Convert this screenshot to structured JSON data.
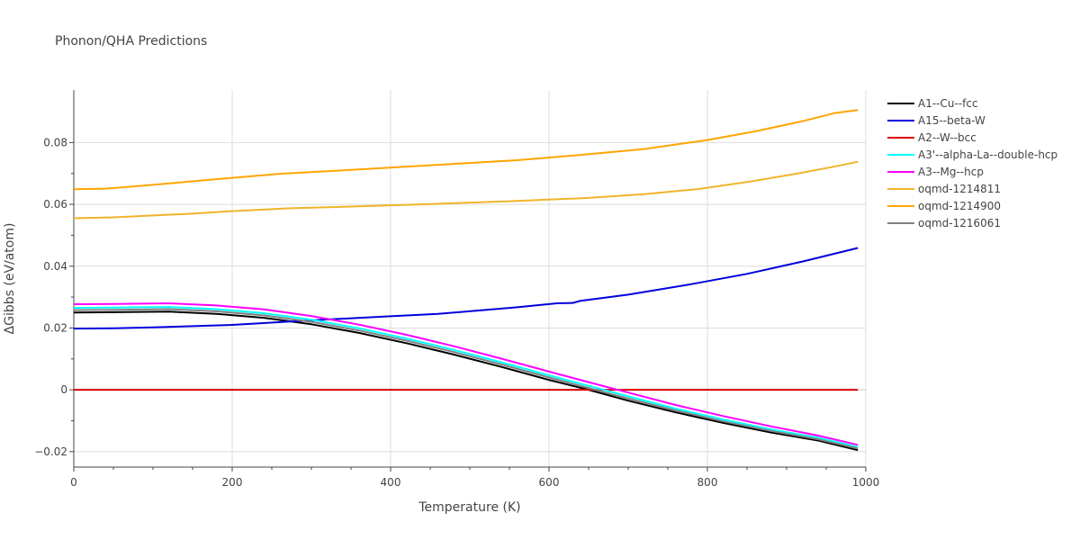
{
  "chart_data": {
    "type": "line",
    "title": "Phonon/QHA Predictions",
    "xlabel": "Temperature (K)",
    "ylabel": "ΔGibbs (eV/atom)",
    "xlim": [
      0,
      1000
    ],
    "ylim": [
      -0.025,
      0.097
    ],
    "x_ticks": [
      0,
      200,
      400,
      600,
      800,
      1000
    ],
    "x_tick_labels": [
      "0",
      "200",
      "400",
      "600",
      "800",
      "1000"
    ],
    "y_ticks": [
      -0.02,
      0,
      0.02,
      0.04,
      0.06,
      0.08
    ],
    "y_tick_labels": [
      "−0.02",
      "0",
      "0.02",
      "0.04",
      "0.06",
      "0.08"
    ],
    "grid": true,
    "legend_position": "top-right outside",
    "series": [
      {
        "name": "A1--Cu--fcc",
        "color": "#000000",
        "x": [
          0,
          50,
          120,
          180,
          240,
          300,
          360,
          420,
          480,
          540,
          600,
          650,
          700,
          760,
          820,
          880,
          940,
          990
        ],
        "y": [
          0.025,
          0.0251,
          0.0253,
          0.0246,
          0.0233,
          0.0212,
          0.0184,
          0.0151,
          0.0114,
          0.0074,
          0.0032,
          0.0,
          -0.0035,
          -0.0073,
          -0.0107,
          -0.0138,
          -0.0164,
          -0.0195
        ]
      },
      {
        "name": "A15--beta-W",
        "color": "#0000dd",
        "x": [
          0,
          50,
          100,
          200,
          300,
          400,
          460,
          560,
          610,
          630,
          640,
          700,
          780,
          850,
          920,
          990
        ],
        "y": [
          0.0198,
          0.0199,
          0.0202,
          0.021,
          0.0225,
          0.0238,
          0.0246,
          0.0267,
          0.028,
          0.0281,
          0.0288,
          0.0308,
          0.0342,
          0.0375,
          0.0415,
          0.0459
        ]
      },
      {
        "name": "A2--W--bcc",
        "color": "#dd0000",
        "x": [
          0,
          990
        ],
        "y": [
          0,
          0
        ]
      },
      {
        "name": "A3'--alpha-La--double-hcp",
        "color": "#00ffff",
        "x": [
          0,
          50,
          120,
          180,
          240,
          300,
          360,
          420,
          480,
          540,
          600,
          650,
          700,
          760,
          820,
          880,
          940,
          990
        ],
        "y": [
          0.0265,
          0.0266,
          0.0268,
          0.0261,
          0.0248,
          0.0227,
          0.0199,
          0.0166,
          0.0129,
          0.0089,
          0.0047,
          0.0013,
          -0.0021,
          -0.0061,
          -0.0096,
          -0.0128,
          -0.0155,
          -0.0185
        ]
      },
      {
        "name": "A3--Mg--hcp",
        "color": "#ff00ff",
        "x": [
          0,
          50,
          120,
          180,
          240,
          300,
          360,
          420,
          480,
          540,
          600,
          650,
          700,
          760,
          820,
          880,
          940,
          990
        ],
        "y": [
          0.0277,
          0.0278,
          0.028,
          0.0273,
          0.026,
          0.0239,
          0.0211,
          0.0178,
          0.0141,
          0.0101,
          0.0059,
          0.0025,
          -0.0009,
          -0.0049,
          -0.0085,
          -0.0118,
          -0.0148,
          -0.0178
        ]
      },
      {
        "name": "oqmd-1214811",
        "color": "#f0b429",
        "x": [
          0,
          50,
          100,
          150,
          200,
          270,
          350,
          450,
          550,
          650,
          720,
          790,
          850,
          910,
          960,
          990
        ],
        "y": [
          0.0555,
          0.0558,
          0.0564,
          0.057,
          0.0578,
          0.0587,
          0.0593,
          0.0601,
          0.061,
          0.0621,
          0.0633,
          0.065,
          0.0672,
          0.0698,
          0.0722,
          0.0738
        ]
      },
      {
        "name": "oqmd-1214900",
        "color": "#ffa500",
        "x": [
          0,
          40,
          100,
          170,
          260,
          360,
          460,
          560,
          640,
          720,
          800,
          860,
          920,
          960,
          990
        ],
        "y": [
          0.0649,
          0.0651,
          0.0663,
          0.0679,
          0.0699,
          0.0713,
          0.0728,
          0.0743,
          0.076,
          0.0779,
          0.0808,
          0.0836,
          0.0869,
          0.0895,
          0.0905
        ]
      },
      {
        "name": "oqmd-1216061",
        "color": "#808080",
        "x": [
          0,
          50,
          120,
          180,
          240,
          300,
          360,
          420,
          480,
          540,
          600,
          650,
          700,
          760,
          820,
          880,
          940,
          990
        ],
        "y": [
          0.0258,
          0.0259,
          0.0261,
          0.0254,
          0.0241,
          0.022,
          0.0192,
          0.0159,
          0.0122,
          0.0082,
          0.004,
          0.0006,
          -0.0028,
          -0.0067,
          -0.0102,
          -0.0133,
          -0.016,
          -0.019
        ]
      }
    ]
  }
}
